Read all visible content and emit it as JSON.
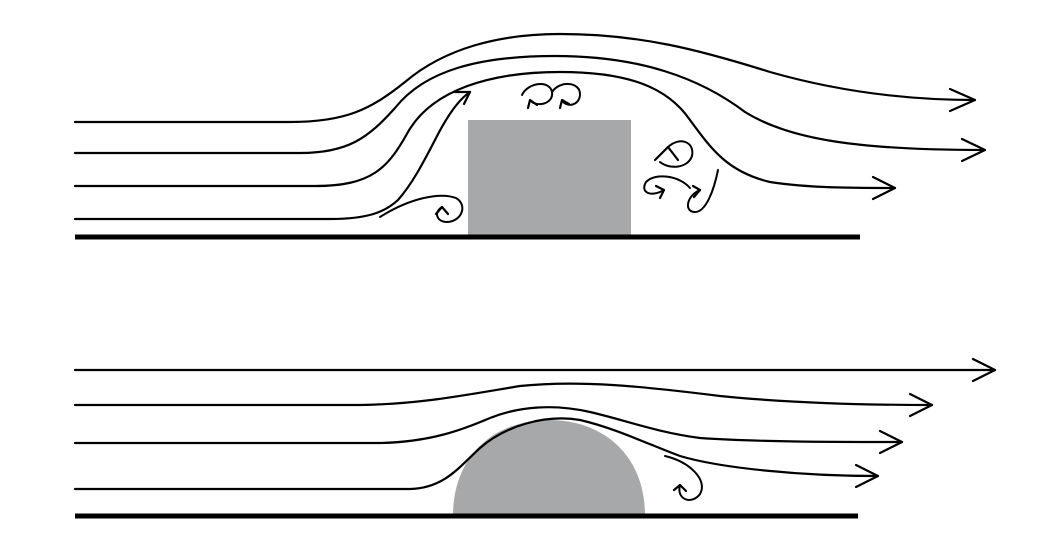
{
  "colors": {
    "background": "#ffffff",
    "line": "#000000",
    "obstacle": "#a7a8aa"
  },
  "panels": [
    {
      "id": "bluff-body",
      "obstacle_shape": "rectangle",
      "streamline_count": 4,
      "recirculation_eddy_count": 6
    },
    {
      "id": "streamlined-body",
      "obstacle_shape": "semicircle",
      "streamline_count": 4,
      "recirculation_eddy_count": 1
    }
  ]
}
